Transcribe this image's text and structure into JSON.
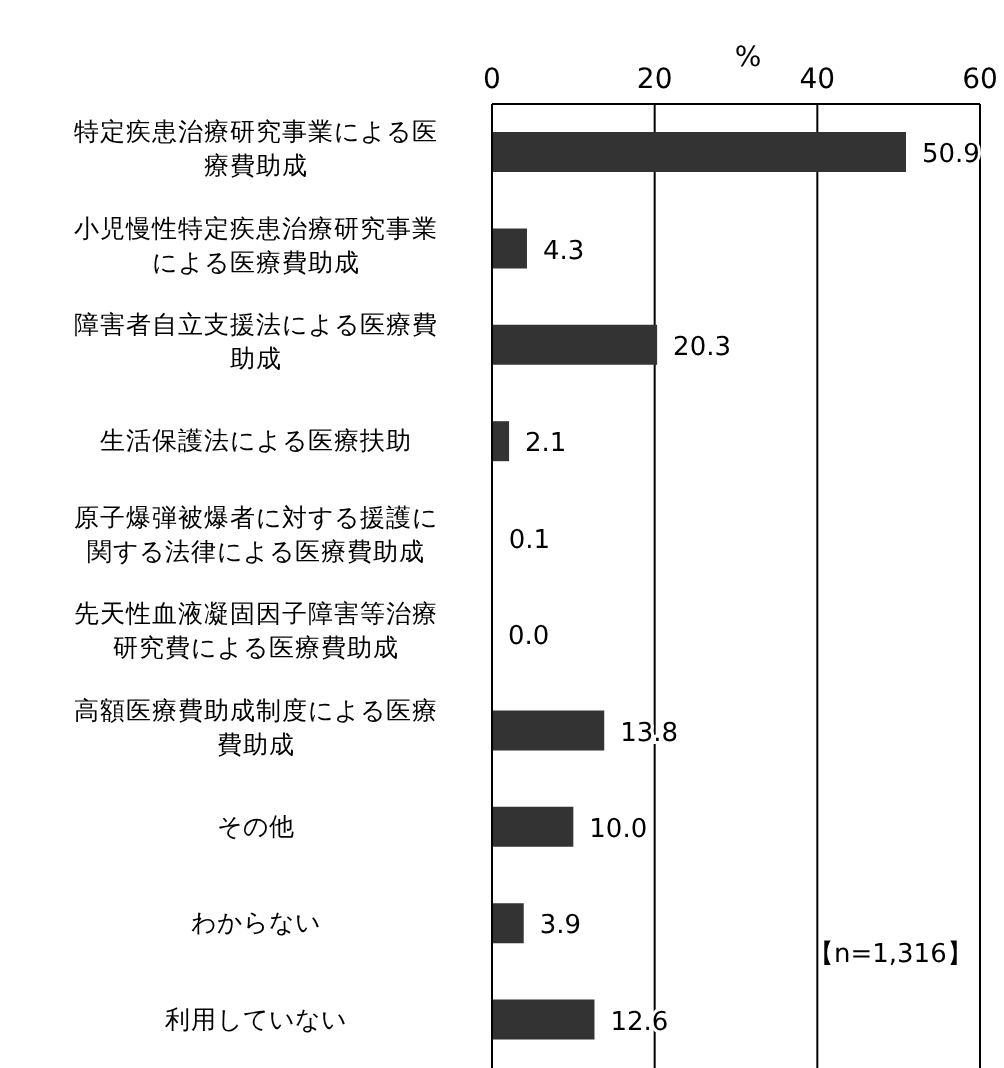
{
  "chart_data": {
    "type": "bar",
    "orientation": "horizontal",
    "xlabel": "%",
    "categories": [
      "特定疾患治療研究事業による医療費助成",
      "小児慢性特定疾患治療研究事業による医療費助成",
      "障害者自立支援法による医療費助成",
      "生活保護法による医療扶助",
      "原子爆弾被爆者に対する援護に関する法律による医療費助成",
      "先天性血液凝固因子障害等治療研究費による医療費助成",
      "高額医療費助成制度による医療費助成",
      "その他",
      "わからない",
      "利用していない"
    ],
    "values": [
      50.9,
      4.3,
      20.3,
      2.1,
      0.1,
      0.0,
      13.8,
      10.0,
      3.9,
      12.6
    ],
    "value_labels": [
      "50.9",
      "4.3",
      "20.3",
      "2.1",
      "0.1",
      "0.0",
      "13.8",
      "10.0",
      "3.9",
      "12.6"
    ],
    "color": "#333333",
    "xlim": [
      0,
      60
    ],
    "xticks": [
      0,
      20,
      40,
      60
    ],
    "grid": "x",
    "legend": false,
    "annotations": [
      "【n=1,316】"
    ]
  }
}
